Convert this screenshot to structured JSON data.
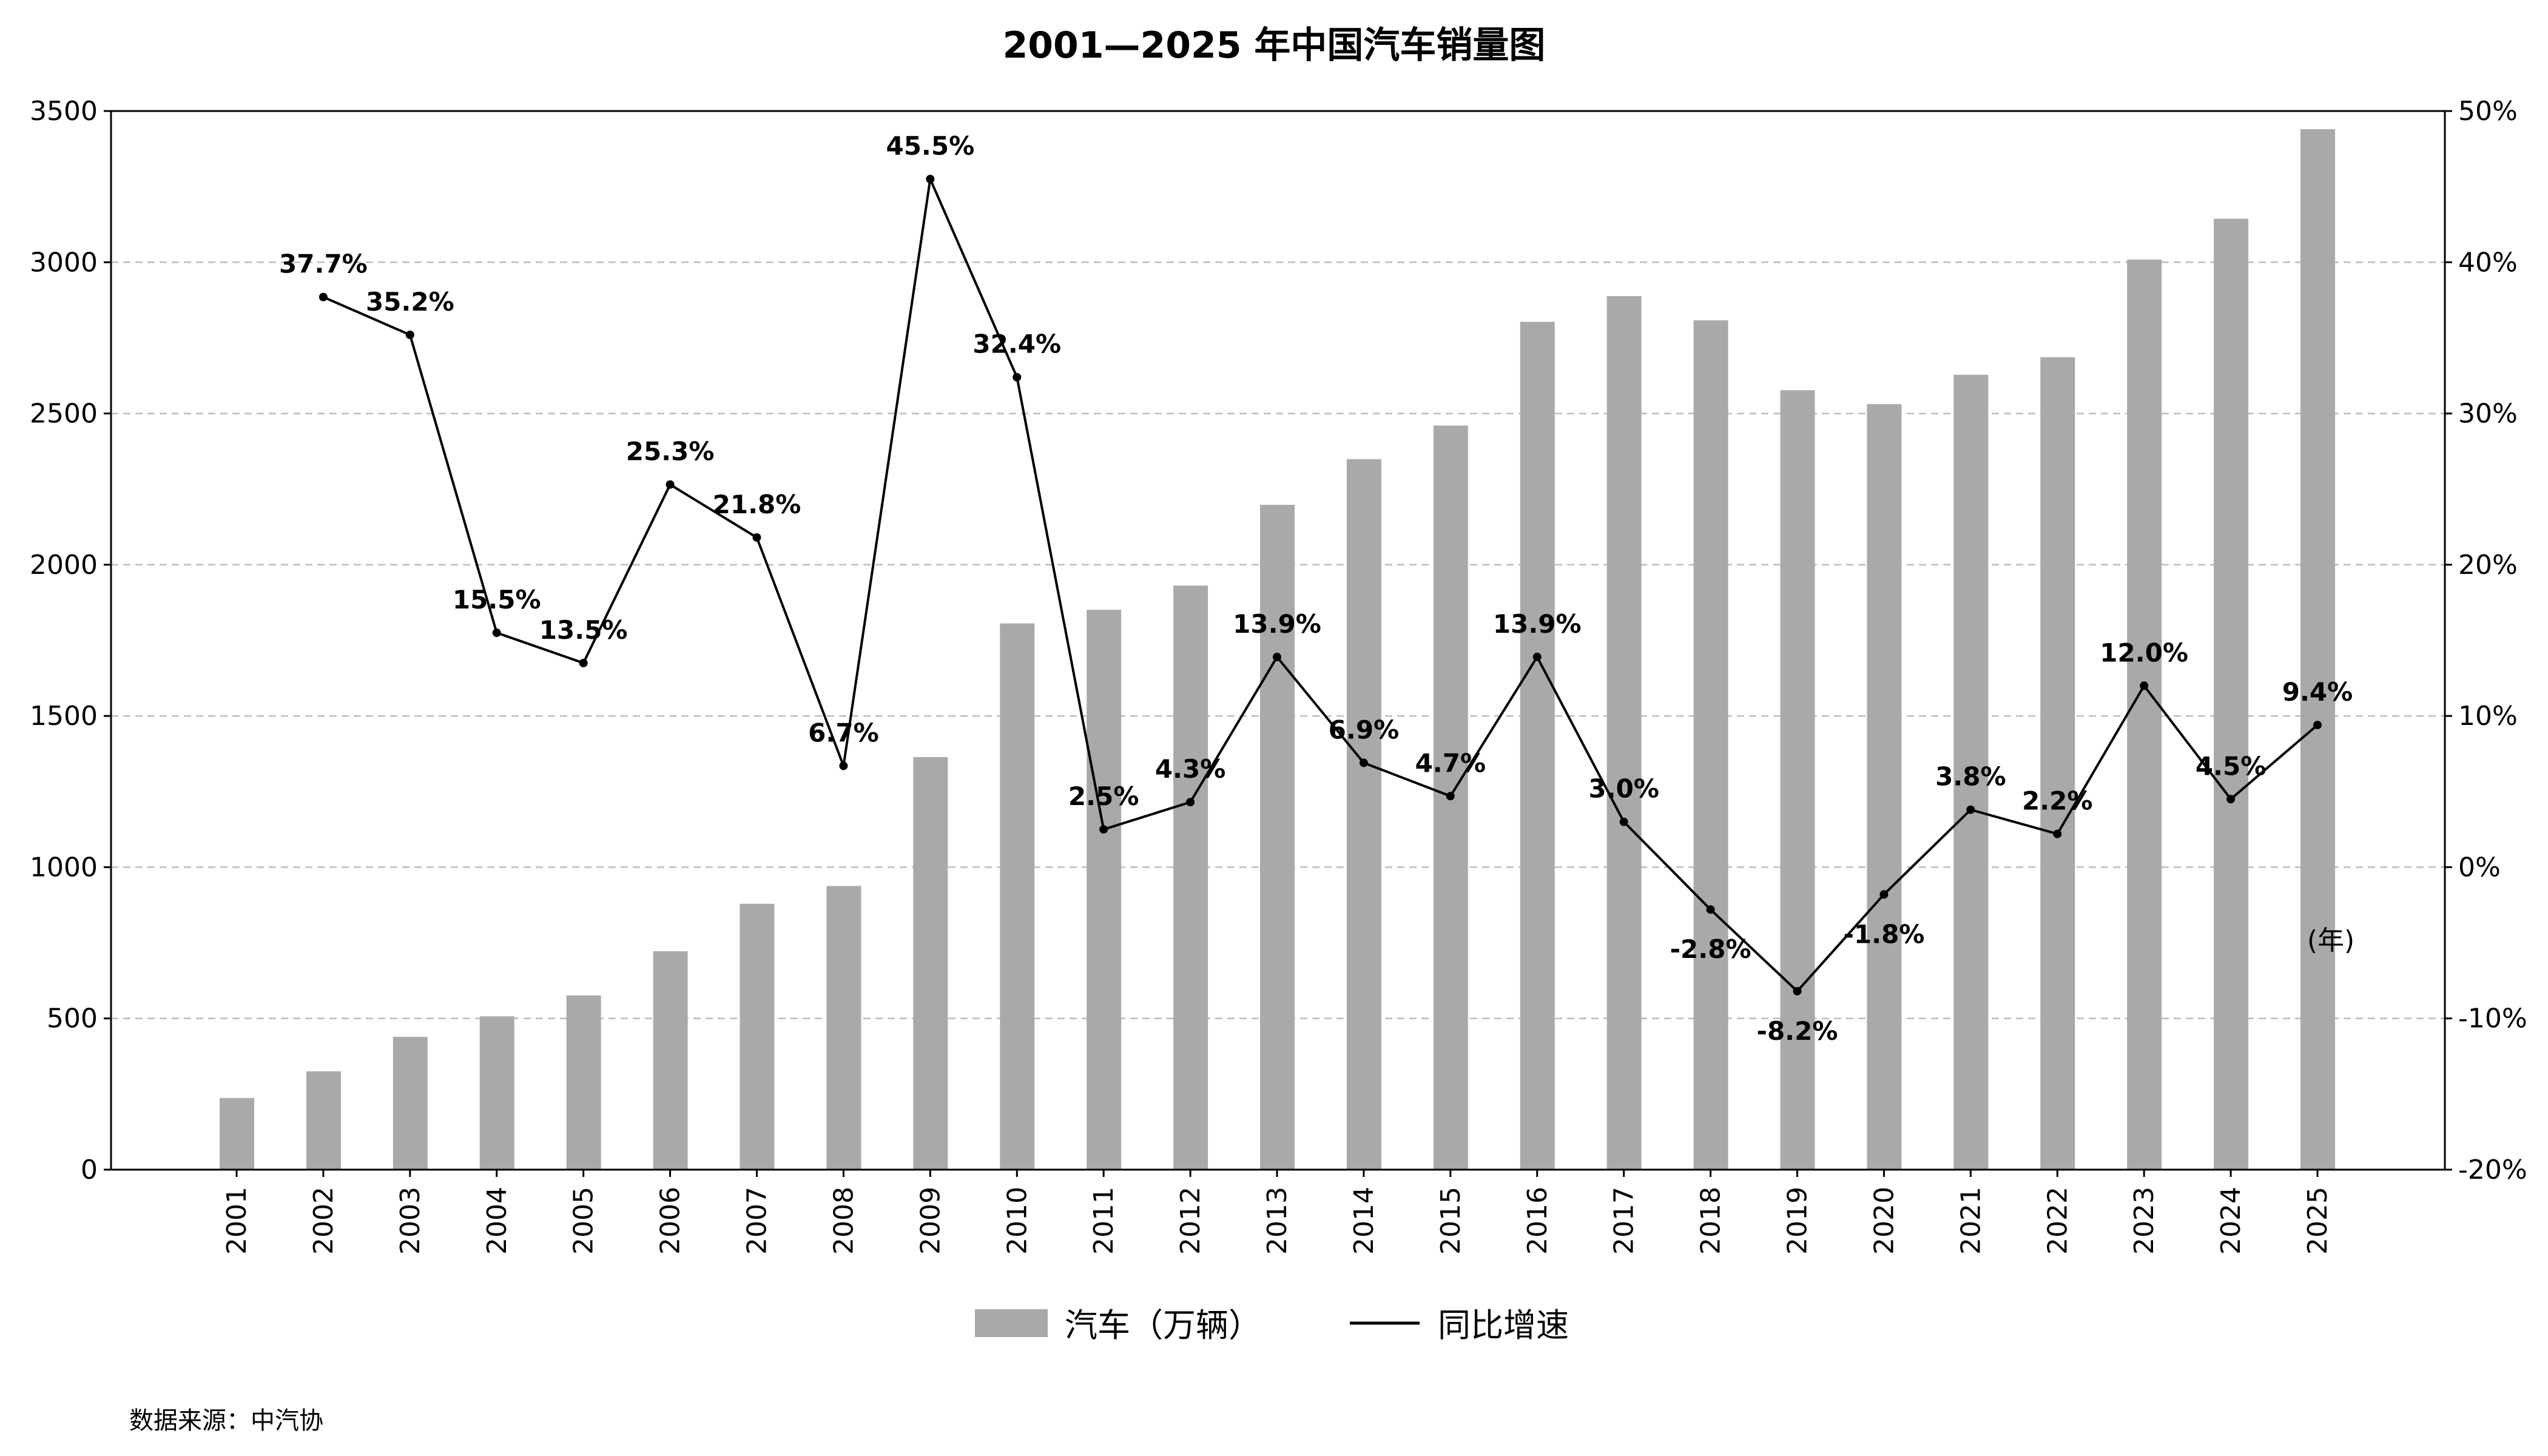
{
  "chart_data": {
    "type": "bar+line",
    "title": "2001—2025 年中国汽车销量图",
    "xlabel": "(年)",
    "ylabel": "",
    "y2label": "",
    "categories": [
      "2001",
      "2002",
      "2003",
      "2004",
      "2005",
      "2006",
      "2007",
      "2008",
      "2009",
      "2010",
      "2011",
      "2012",
      "2013",
      "2014",
      "2015",
      "2016",
      "2017",
      "2018",
      "2019",
      "2020",
      "2021",
      "2022",
      "2023",
      "2024",
      "2025"
    ],
    "series": [
      {
        "name": "汽车（万辆）",
        "type": "bar",
        "axis": "left",
        "color": "#a9a9a9",
        "values": [
          237,
          325,
          439,
          507,
          576,
          722,
          879,
          938,
          1364,
          1806,
          1851,
          1931,
          2198,
          2349,
          2460,
          2803,
          2888,
          2808,
          2577,
          2531,
          2628,
          2686,
          3009,
          3144,
          3440
        ]
      },
      {
        "name": "同比增速",
        "type": "line",
        "axis": "right",
        "color": "#000000",
        "values": [
          null,
          37.7,
          35.2,
          15.5,
          13.5,
          25.3,
          21.8,
          6.7,
          45.5,
          32.4,
          2.5,
          4.3,
          13.9,
          6.9,
          4.7,
          13.9,
          3.0,
          -2.8,
          -8.2,
          -1.8,
          3.8,
          2.2,
          12.0,
          4.5,
          9.4
        ],
        "labels": [
          "",
          "37.7%",
          "35.2%",
          "15.5%",
          "13.5%",
          "25.3%",
          "21.8%",
          "6.7%",
          "45.5%",
          "32.4%",
          "2.5%",
          "4.3%",
          "13.9%",
          "6.9%",
          "4.7%",
          "13.9%",
          "3.0%",
          "-2.8%",
          "-8.2%",
          "-1.8%",
          "3.8%",
          "2.2%",
          "12.0%",
          "4.5%",
          "9.4%"
        ]
      }
    ],
    "ylim": [
      0,
      3500
    ],
    "yticks": [
      "0",
      "500",
      "1000",
      "1500",
      "2000",
      "2500",
      "3000",
      "3500"
    ],
    "y2lim": [
      -20,
      50
    ],
    "y2ticks": [
      "-20%",
      "-10%",
      "0%",
      "10%",
      "20%",
      "30%",
      "40%",
      "50%"
    ],
    "grid": "horizontal dashed",
    "legend": "bottom-center",
    "source": "数据来源：中汽协"
  }
}
